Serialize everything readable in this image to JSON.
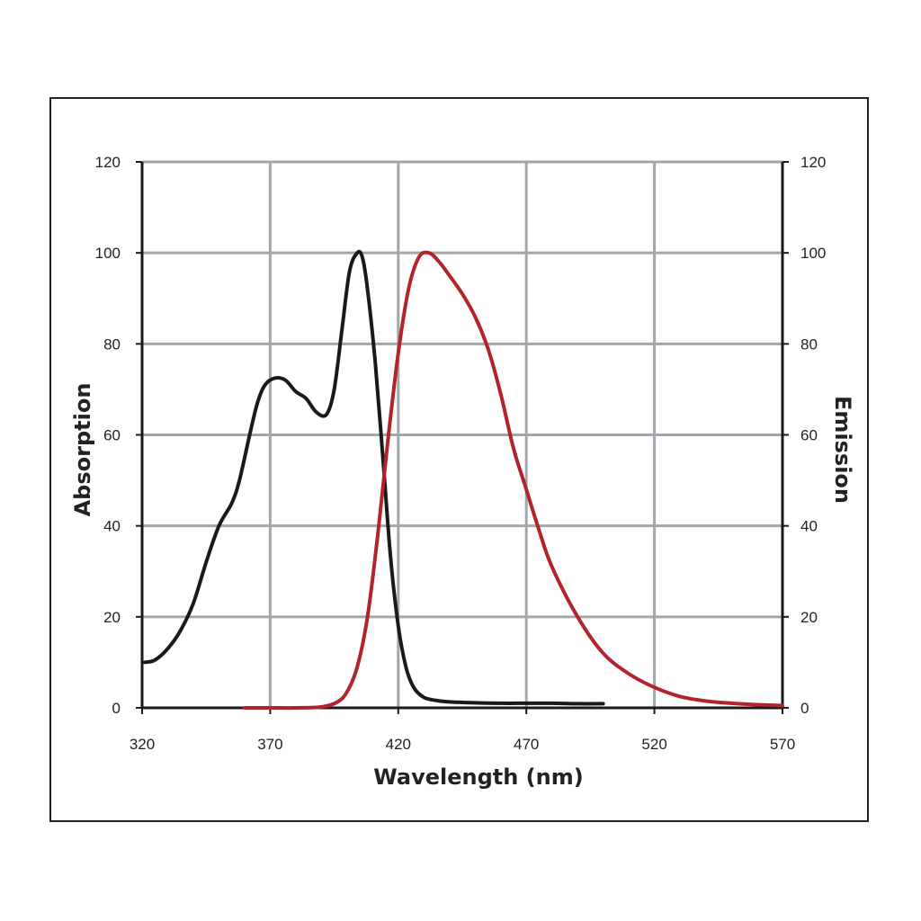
{
  "chart_data": {
    "type": "line",
    "title": "",
    "xlabel": "Wavelength (nm)",
    "ylabel": "Absorption",
    "y2label": "Emission",
    "xlim": [
      320,
      570
    ],
    "ylim": [
      0,
      120
    ],
    "y2lim": [
      0,
      120
    ],
    "x_ticks": [
      320,
      370,
      420,
      470,
      520,
      570
    ],
    "y_ticks": [
      0,
      20,
      40,
      60,
      80,
      100,
      120
    ],
    "y2_ticks": [
      0,
      20,
      40,
      60,
      80,
      100,
      120
    ],
    "grid": true,
    "series": [
      {
        "color": "#1a1a1a",
        "axis": "left",
        "x": [
          321,
          325,
          330,
          335,
          340,
          345,
          350,
          355,
          358,
          362,
          365,
          368,
          372,
          376,
          380,
          384,
          388,
          392,
          395,
          398,
          401,
          404,
          406,
          408,
          411,
          414,
          417,
          420,
          423,
          426,
          430,
          435,
          440,
          450,
          460,
          470,
          480,
          490,
          500
        ],
        "y": [
          10,
          10.5,
          13,
          17,
          23,
          32,
          40,
          45,
          50,
          60,
          67,
          71,
          72.5,
          72,
          69.5,
          68,
          65,
          64.5,
          70,
          83,
          96,
          100,
          99,
          92,
          76,
          55,
          33,
          18,
          9,
          4.5,
          2.3,
          1.6,
          1.3,
          1.1,
          1.0,
          1.0,
          1.0,
          0.9,
          0.9
        ]
      },
      {
        "color": "#b2232b",
        "axis": "right",
        "x": [
          360,
          370,
          380,
          390,
          396,
          400,
          404,
          408,
          412,
          416,
          420,
          424,
          428,
          432,
          436,
          440,
          445,
          450,
          455,
          460,
          465,
          470,
          475,
          480,
          490,
          500,
          510,
          520,
          530,
          540,
          550,
          560,
          570
        ],
        "y": [
          0,
          0,
          0,
          0.2,
          1.2,
          3.5,
          9,
          20,
          38,
          59,
          78,
          92,
          99,
          100,
          98,
          95,
          91,
          86,
          79,
          69,
          57,
          48,
          39,
          31,
          20,
          12,
          7.5,
          4.5,
          2.5,
          1.5,
          1.0,
          0.7,
          0.5
        ]
      }
    ]
  }
}
